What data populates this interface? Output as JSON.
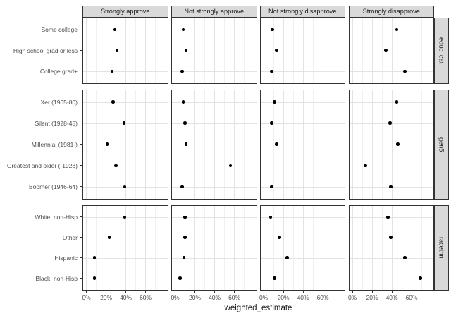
{
  "colors": {
    "background": "#ffffff",
    "strip_fill": "#d9d9d9",
    "panel_border": "#333333",
    "grid_major": "#e3e3e3",
    "grid_minor": "#f0f0f0",
    "dot": "#000000",
    "axis_text": "#4d4d4d",
    "strip_text": "#1a1a1a"
  },
  "chart_data": {
    "type": "scatter",
    "title": "",
    "xlabel": "weighted_estimate",
    "units": "percent",
    "xlim": [
      -4,
      83
    ],
    "x_tick_values": [
      0,
      20,
      40,
      60
    ],
    "x_tick_labels": [
      "0%",
      "20%",
      "40%",
      "60%"
    ],
    "x_minor_tick_values": [
      10,
      30,
      50,
      70
    ],
    "grid": "on",
    "legend": "none",
    "facet_columns": [
      "Strongly approve",
      "Not strongly approve",
      "Not strongly disapprove",
      "Strongly disapprove"
    ],
    "facet_rows": [
      {
        "label": "educ_cat",
        "categories": [
          "Some college",
          "High school grad or less",
          "College grad+"
        ],
        "series": [
          {
            "column": "Strongly approve",
            "values": [
              29,
              31,
              26
            ]
          },
          {
            "column": "Not strongly approve",
            "values": [
              8,
              11,
              7
            ]
          },
          {
            "column": "Not strongly disapprove",
            "values": [
              9,
              13,
              8
            ]
          },
          {
            "column": "Strongly disapprove",
            "values": [
              45,
              34,
              53
            ]
          }
        ]
      },
      {
        "label": "gen5",
        "categories": [
          "Xer (1965-80)",
          "Silent (1928-45)",
          "Millennial (1981-)",
          "Greatest and older (-1928)",
          "Boomer (1946-64)"
        ],
        "series": [
          {
            "column": "Strongly approve",
            "values": [
              27,
              38,
              21,
              30,
              39
            ]
          },
          {
            "column": "Not strongly approve",
            "values": [
              8,
              10,
              11,
              56,
              7
            ]
          },
          {
            "column": "Not strongly disapprove",
            "values": [
              11,
              8,
              13,
              null,
              8
            ]
          },
          {
            "column": "Strongly disapprove",
            "values": [
              45,
              38,
              46,
              13,
              39
            ]
          }
        ]
      },
      {
        "label": "racethn",
        "categories": [
          "White, non-Hisp",
          "Other",
          "Hispanic",
          "Black, non-Hisp"
        ],
        "series": [
          {
            "column": "Strongly approve",
            "values": [
              39,
              23,
              8,
              8
            ]
          },
          {
            "column": "Not strongly approve",
            "values": [
              10,
              10,
              9,
              5
            ]
          },
          {
            "column": "Not strongly disapprove",
            "values": [
              7,
              16,
              24,
              11
            ]
          },
          {
            "column": "Strongly disapprove",
            "values": [
              36,
              39,
              53,
              69
            ]
          }
        ]
      }
    ]
  }
}
